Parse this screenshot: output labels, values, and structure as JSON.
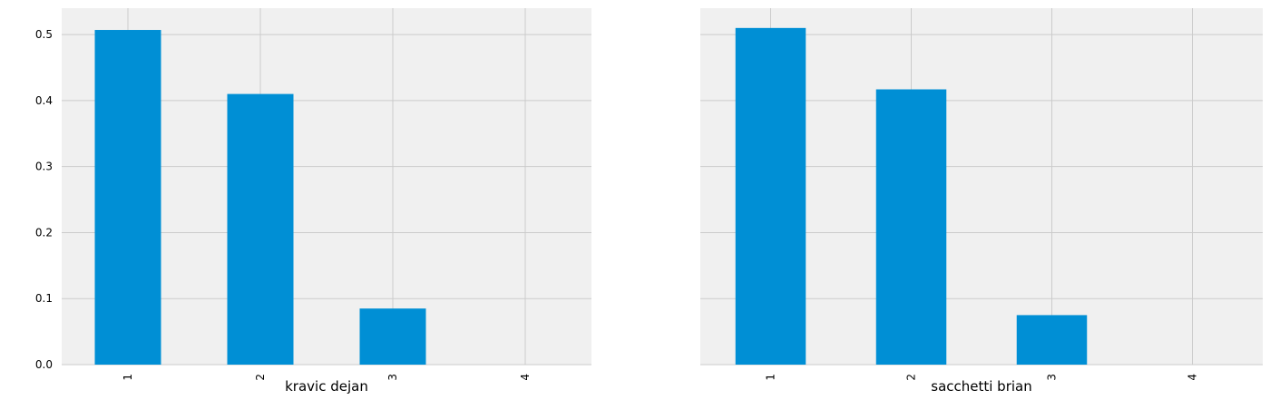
{
  "chart_data": [
    {
      "type": "bar",
      "categories": [
        "1",
        "2",
        "3",
        "4"
      ],
      "values": [
        0.507,
        0.41,
        0.085,
        0.0
      ],
      "xlabel": "kravic dejan",
      "ylabel": "",
      "ylim": [
        0,
        0.54
      ],
      "yticks": [
        "0.0",
        "0.1",
        "0.2",
        "0.3",
        "0.4",
        "0.5"
      ],
      "grid": true,
      "bar_color": "#008fd5"
    },
    {
      "type": "bar",
      "categories": [
        "1",
        "2",
        "3",
        "4"
      ],
      "values": [
        0.51,
        0.417,
        0.075,
        0.0
      ],
      "xlabel": "sacchetti brian",
      "ylabel": "",
      "ylim": [
        0,
        0.54
      ],
      "yticks": [],
      "grid": true,
      "bar_color": "#008fd5"
    }
  ],
  "style": {
    "axes_background": "#f0f0f0",
    "grid_color": "#cbcbcb"
  }
}
